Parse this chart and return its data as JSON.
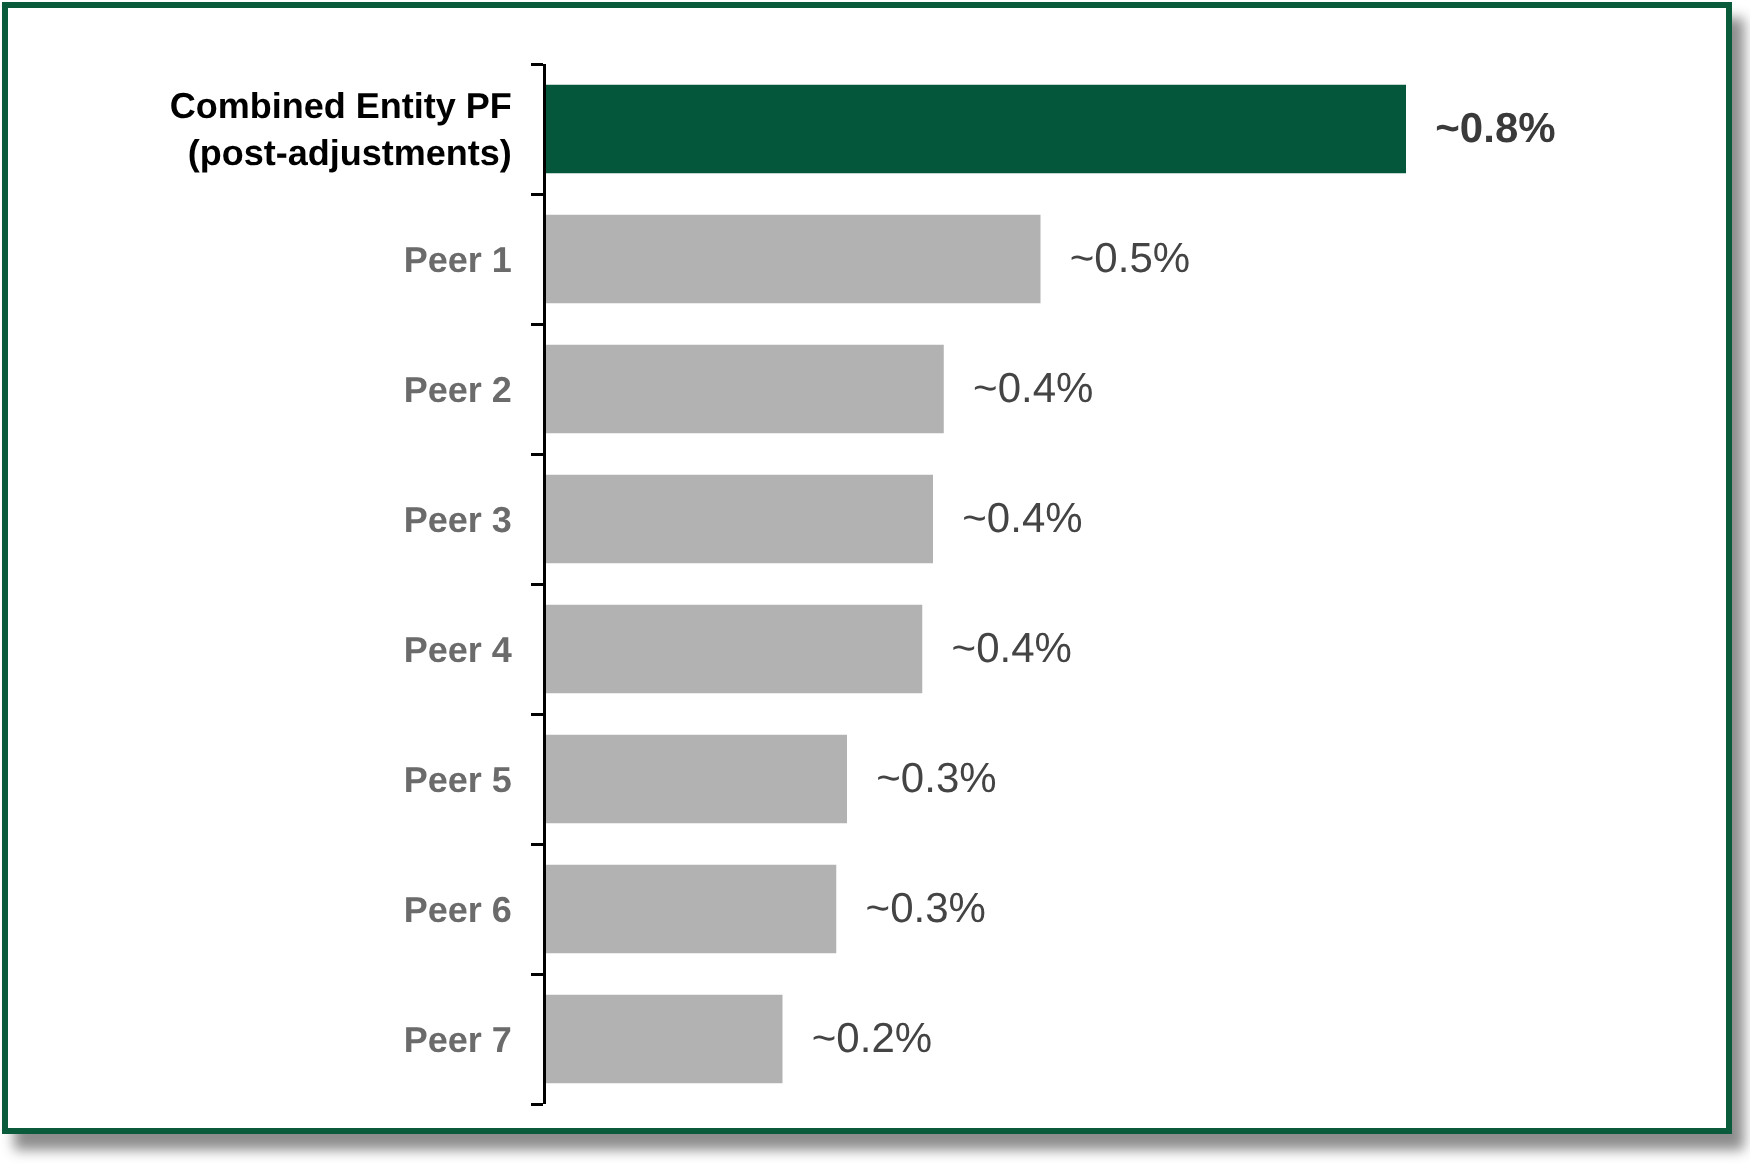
{
  "chart_data": {
    "type": "bar",
    "orientation": "horizontal",
    "categories": [
      "Combined Entity PF (post-adjustments)",
      "Peer 1",
      "Peer 2",
      "Peer 3",
      "Peer 4",
      "Peer 5",
      "Peer 6",
      "Peer 7"
    ],
    "values": [
      0.8,
      0.46,
      0.37,
      0.36,
      0.35,
      0.28,
      0.27,
      0.22
    ],
    "colors": [
      "#05573c",
      "#b2b2b2",
      "#b2b2b2",
      "#b2b2b2",
      "#b2b2b2",
      "#b2b2b2",
      "#b2b2b2",
      "#b2b2b2"
    ],
    "value_labels": [
      "~0.8%",
      "~0.5%",
      "~0.4%",
      "~0.4%",
      "~0.4%",
      "~0.3%",
      "~0.3%",
      "~0.2%"
    ],
    "tick_labels": "y"
  }
}
